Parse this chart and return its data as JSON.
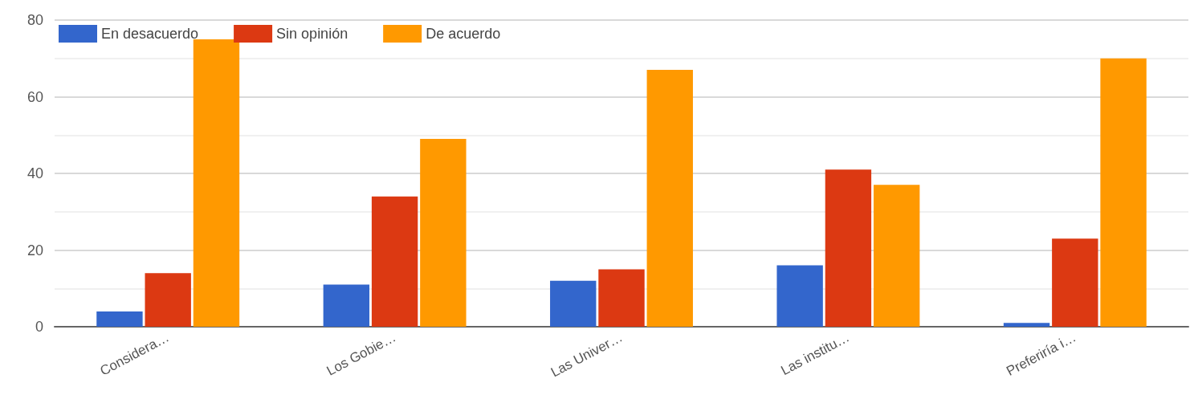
{
  "chart_data": {
    "type": "bar",
    "categories": [
      "Considera…",
      "Los Gobie…",
      "Las Univer…",
      "Las institu…",
      "Preferiría i…"
    ],
    "series": [
      {
        "name": "En desacuerdo",
        "color": "#3366cc",
        "values": [
          4,
          11,
          12,
          16,
          1
        ]
      },
      {
        "name": "Sin opinión",
        "color": "#dc3912",
        "values": [
          14,
          34,
          15,
          41,
          23
        ]
      },
      {
        "name": "De acuerdo",
        "color": "#ff9900",
        "values": [
          75,
          49,
          67,
          37,
          70
        ]
      }
    ],
    "ylim": [
      0,
      80
    ],
    "yticks": [
      0,
      {
        "value": 10,
        "label": null
      },
      20,
      {
        "value": 30,
        "label": null
      },
      40,
      {
        "value": 50,
        "label": null
      },
      60,
      {
        "value": 70,
        "label": null
      },
      80
    ],
    "grid": "y",
    "legend": "top left"
  }
}
